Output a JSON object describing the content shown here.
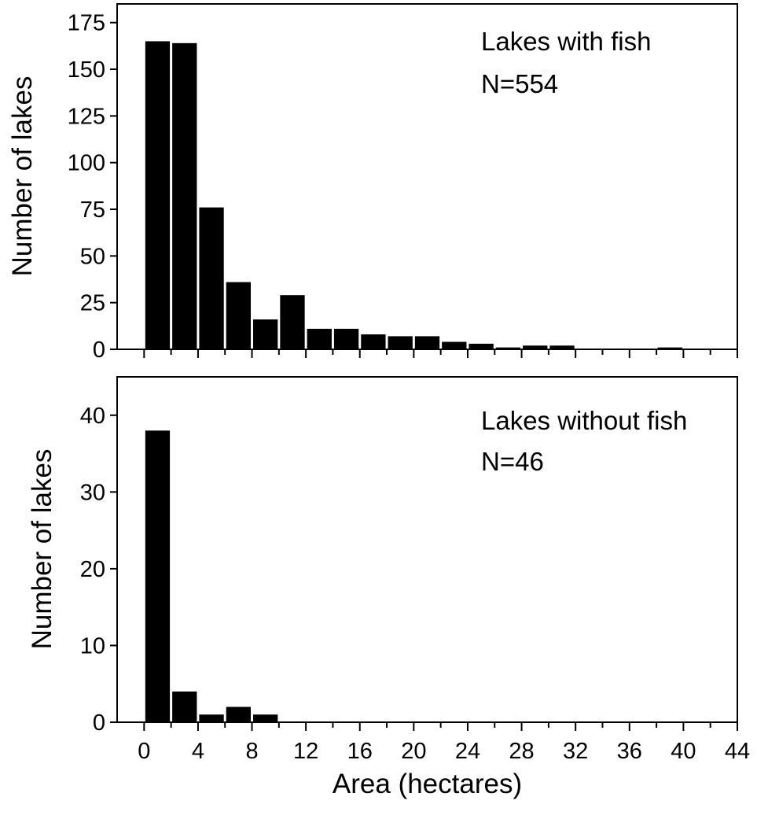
{
  "chart_data": [
    {
      "type": "bar",
      "panel": "top",
      "annotations": [
        "Lakes with fish",
        "N=554"
      ],
      "ylabel": "Number of lakes",
      "xlabel": "",
      "bin_width": 2,
      "x_bin_starts": [
        0,
        2,
        4,
        6,
        8,
        10,
        12,
        14,
        16,
        18,
        20,
        22,
        24,
        26,
        28,
        30,
        32,
        34,
        36,
        38,
        40,
        42
      ],
      "values": [
        165,
        164,
        76,
        36,
        16,
        29,
        11,
        11,
        8,
        7,
        7,
        4,
        3,
        1,
        2,
        2,
        0,
        0,
        0,
        1,
        0,
        0
      ],
      "xlim": [
        -2,
        44
      ],
      "ylim": [
        0,
        185
      ],
      "yticks": [
        0,
        25,
        50,
        75,
        100,
        125,
        150,
        175
      ],
      "xticks": [
        0,
        4,
        8,
        12,
        16,
        20,
        24,
        28,
        32,
        36,
        40,
        44
      ],
      "show_x_tick_labels": false,
      "grid": false,
      "color": "#000000"
    },
    {
      "type": "bar",
      "panel": "bottom",
      "annotations": [
        "Lakes without fish",
        "N=46"
      ],
      "ylabel": "Number of lakes",
      "xlabel": "Area (hectares)",
      "bin_width": 2,
      "x_bin_starts": [
        0,
        2,
        4,
        6,
        8,
        10,
        12,
        14,
        16,
        18,
        20,
        22,
        24,
        26,
        28,
        30,
        32,
        34,
        36,
        38,
        40,
        42
      ],
      "values": [
        38,
        4,
        1,
        2,
        1,
        0,
        0,
        0,
        0,
        0,
        0,
        0,
        0,
        0,
        0,
        0,
        0,
        0,
        0,
        0,
        0,
        0
      ],
      "xlim": [
        -2,
        44
      ],
      "ylim": [
        0,
        45
      ],
      "yticks": [
        0,
        10,
        20,
        30,
        40
      ],
      "xticks": [
        0,
        4,
        8,
        12,
        16,
        20,
        24,
        28,
        32,
        36,
        40,
        44
      ],
      "show_x_tick_labels": true,
      "grid": false,
      "color": "#000000"
    }
  ]
}
